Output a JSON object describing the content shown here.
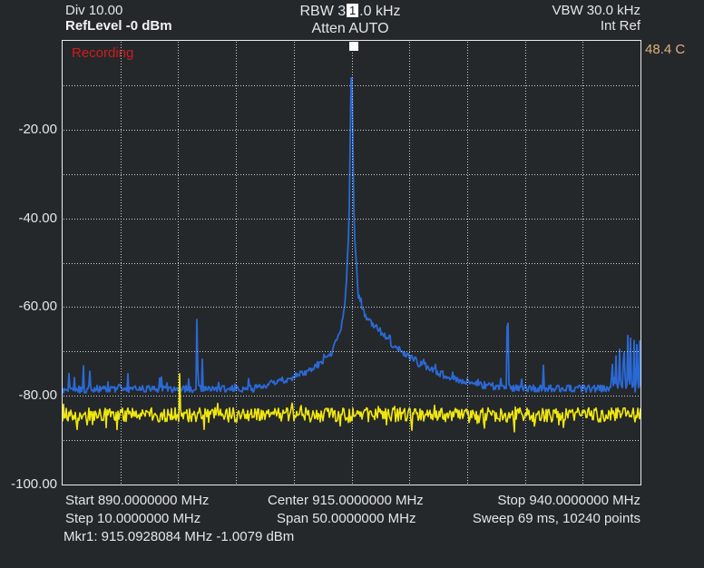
{
  "app": {
    "background": "#24282b",
    "text_color": "#e4e6e6",
    "grid_color": "#ccd1d3",
    "border_color": "#e8ebec"
  },
  "header": {
    "left": {
      "div_label": "Div 10.00",
      "ref_level": "RefLevel -0 dBm"
    },
    "center": {
      "rbw_prefix": "RBW 3",
      "rbw_suffix": ".0 kHz",
      "atten": "Atten AUTO"
    },
    "right": {
      "vbw": "VBW 30.0 kHz",
      "ref_source": "Int Ref"
    },
    "temperature": {
      "value": "48.4 C",
      "color": "#ddb27a"
    }
  },
  "status": {
    "recording": {
      "label": "Recording",
      "color": "#cf1d1d"
    }
  },
  "marker_flag": {
    "number": "1"
  },
  "footer": {
    "rows": [
      {
        "left": "Start 890.0000000 MHz",
        "center": "Center 915.0000000 MHz",
        "right": "Stop 940.0000000 MHz"
      },
      {
        "left": "Step 10.0000000 MHz",
        "center": "Span 50.0000000 MHz",
        "right": "Sweep 69 ms, 10240 points"
      }
    ],
    "marker_readout": "Mkr1: 915.0928084 MHz -1.0079 dBm"
  },
  "chart_data": {
    "type": "line",
    "title": "",
    "x_axis": {
      "unit": "MHz",
      "min": 890,
      "max": 940,
      "grid_step_mhz": 5,
      "tick_labels_shown": false
    },
    "y_axis": {
      "unit": "dBm",
      "min": -100,
      "max": 0,
      "grid_step_db": 10,
      "div_db": 10,
      "ticks": [
        {
          "label": "-20.00",
          "dbm": -20
        },
        {
          "label": "-40.00",
          "dbm": -40
        },
        {
          "label": "-60.00",
          "dbm": -60
        },
        {
          "label": "-80.00",
          "dbm": -80
        },
        {
          "label": "-100.00",
          "dbm": -100
        }
      ]
    },
    "marker": {
      "id": 1,
      "frequency_mhz": 915.0928084,
      "level_dbm": -1.0079
    },
    "series": [
      {
        "name": "spectrum-trace",
        "color": "#2b69d4",
        "noise_floor_dbm": -78.6,
        "peak": {
          "frequency_mhz": 915.0,
          "level_dbm": -1.0
        },
        "envelope": [
          [
            890.0,
            -78.6
          ],
          [
            906.5,
            -78.4
          ],
          [
            909.0,
            -76.5
          ],
          [
            910.5,
            -75.3
          ],
          [
            912.0,
            -73.2
          ],
          [
            913.2,
            -70.5
          ],
          [
            914.0,
            -66.0
          ],
          [
            914.45,
            -60.0
          ],
          [
            914.78,
            -42.0
          ],
          [
            914.92,
            -16.0
          ],
          [
            915.0,
            -1.0
          ],
          [
            915.08,
            -16.0
          ],
          [
            915.22,
            -42.0
          ],
          [
            915.55,
            -57.0
          ],
          [
            916.2,
            -62.0
          ],
          [
            917.3,
            -65.0
          ],
          [
            918.6,
            -68.5
          ],
          [
            919.8,
            -71.0
          ],
          [
            921.5,
            -73.8
          ],
          [
            923.5,
            -75.8
          ],
          [
            926.0,
            -77.5
          ],
          [
            929.0,
            -78.3
          ],
          [
            940.0,
            -78.4
          ]
        ],
        "spurs": [
          [
            890.55,
            -75.0,
            0.06
          ],
          [
            891.0,
            -71.5,
            0.07
          ],
          [
            891.45,
            -72.5,
            0.06
          ],
          [
            891.8,
            -72.3,
            0.06
          ],
          [
            892.35,
            -73.5,
            0.06
          ],
          [
            893.0,
            -74.0,
            0.06
          ],
          [
            893.5,
            -74.8,
            0.05
          ],
          [
            894.45,
            -74.2,
            0.06
          ],
          [
            895.65,
            -75.2,
            0.05
          ],
          [
            897.8,
            -76.5,
            0.05
          ],
          [
            901.63,
            -60.2,
            0.07
          ],
          [
            902.1,
            -69.2,
            0.06
          ],
          [
            905.0,
            -76.8,
            0.05
          ],
          [
            908.0,
            -75.5,
            0.05
          ],
          [
            908.6,
            -75.0,
            0.05
          ],
          [
            919.2,
            -69.0,
            0.05
          ],
          [
            920.0,
            -70.5,
            0.05
          ],
          [
            921.8,
            -72.5,
            0.05
          ],
          [
            923.9,
            -74.0,
            0.06
          ],
          [
            925.3,
            -75.5,
            0.05
          ],
          [
            927.95,
            -68.5,
            0.06
          ],
          [
            928.5,
            -57.3,
            0.08
          ],
          [
            929.9,
            -73.5,
            0.06
          ],
          [
            931.1,
            -73.5,
            0.06
          ],
          [
            931.6,
            -74.5,
            0.05
          ],
          [
            933.0,
            -75.5,
            0.05
          ],
          [
            936.1,
            -74.5,
            0.05
          ],
          [
            936.5,
            -73.5,
            0.05
          ],
          [
            937.55,
            -71.0,
            0.06
          ],
          [
            937.9,
            -67.5,
            0.07
          ],
          [
            938.2,
            -69.5,
            0.06
          ],
          [
            938.55,
            -65.8,
            0.08
          ],
          [
            938.9,
            -68.0,
            0.06
          ],
          [
            939.15,
            -66.3,
            0.07
          ],
          [
            939.45,
            -69.5,
            0.06
          ],
          [
            939.7,
            -66.2,
            0.07
          ],
          [
            939.92,
            -69.0,
            0.05
          ]
        ]
      },
      {
        "name": "baseline-trace",
        "color": "#f0e60e",
        "noise_floor_dbm": -84.3,
        "envelope": [
          [
            890.0,
            -84.3
          ],
          [
            940.0,
            -84.3
          ]
        ],
        "spurs": [
          [
            900.13,
            -74.0,
            0.06
          ]
        ],
        "dips": [
          [
            929.85,
            -88.8,
            0.06
          ]
        ]
      }
    ]
  }
}
